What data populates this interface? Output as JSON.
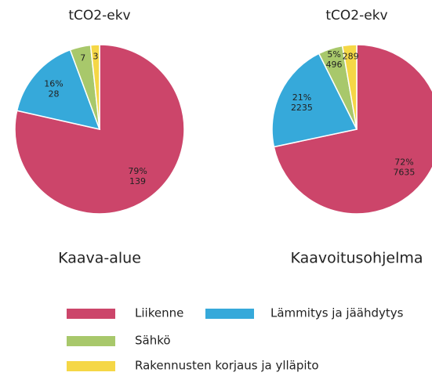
{
  "chart_data": [
    {
      "type": "pie",
      "title": "tCO2-ekv",
      "subtitle": "Kaava-alue",
      "categories": [
        "Liikenne",
        "Lämmitys ja jäähdytys",
        "Sähkö",
        "Rakennusten korjaus ja ylläpito"
      ],
      "values": [
        139,
        28,
        7,
        3
      ],
      "value_labels": [
        [
          "79%",
          "139"
        ],
        [
          "16%",
          "28"
        ],
        [
          "7"
        ],
        [
          "3"
        ]
      ],
      "colors": [
        "#cc456a",
        "#36a9da",
        "#a8c86b",
        "#f5d746"
      ]
    },
    {
      "type": "pie",
      "title": "tCO2-ekv",
      "subtitle": "Kaavoitusohjelma",
      "categories": [
        "Liikenne",
        "Lämmitys ja jäähdytys",
        "Sähkö",
        "Rakennusten korjaus ja ylläpito"
      ],
      "values": [
        7635,
        2235,
        496,
        289
      ],
      "value_labels": [
        [
          "72%",
          "7635"
        ],
        [
          "21%",
          "2235"
        ],
        [
          "5%",
          "496"
        ],
        [
          "289"
        ]
      ],
      "colors": [
        "#cc456a",
        "#36a9da",
        "#a8c86b",
        "#f5d746"
      ]
    }
  ]
}
